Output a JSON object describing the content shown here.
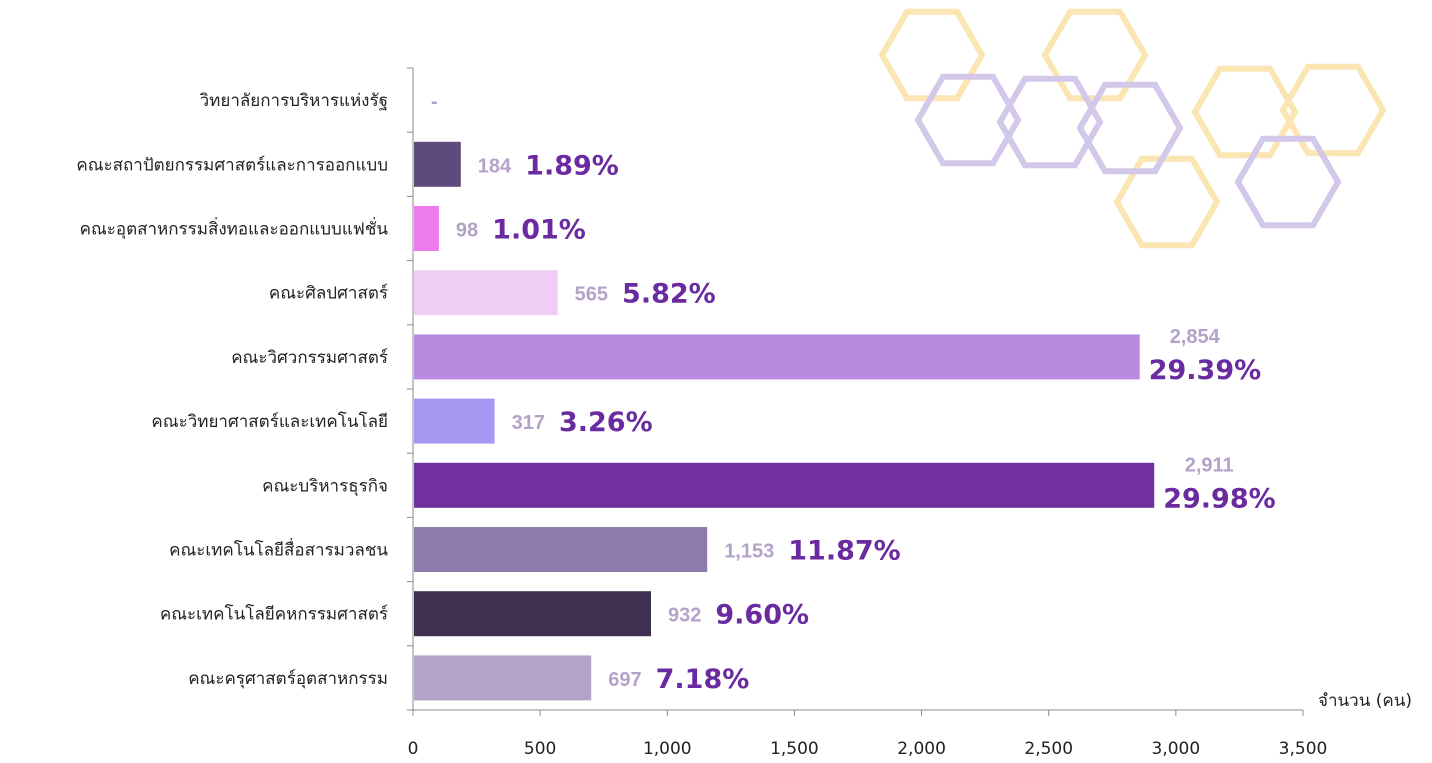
{
  "chart_data": {
    "type": "bar",
    "orientation": "horizontal",
    "categories": [
      "วิทยาลัยการบริหารแห่งรัฐ",
      "คณะสถาปัตยกรรมศาสตร์และการออกแบบ",
      "คณะอุตสาหกรรมสิ่งทอและออกแบบแฟชั่น",
      "คณะศิลปศาสตร์",
      "คณะวิศวกรรมศาสตร์",
      "คณะวิทยาศาสตร์และเทคโนโลยี",
      "คณะบริหารธุรกิจ",
      "คณะเทคโนโลยีสื่อสารมวลชน",
      "คณะเทคโนโลยีคหกรรมศาสตร์",
      "คณะครุศาสตร์อุตสาหกรรม"
    ],
    "values": [
      0,
      184,
      98,
      565,
      2854,
      317,
      2911,
      1153,
      932,
      697
    ],
    "value_labels": [
      "-",
      "184",
      "98",
      "565",
      "2,854",
      "317",
      "2,911",
      "1,153",
      "932",
      "697"
    ],
    "percent_labels": [
      "",
      "1.89%",
      "1.01%",
      "5.82%",
      "29.39%",
      "3.26%",
      "29.98%",
      "11.87%",
      "9.60%",
      "7.18%"
    ],
    "bar_colors": [
      "#b7a6cf",
      "#5e4a7d",
      "#ee7bee",
      "#f0cdf5",
      "#b98be0",
      "#a897f2",
      "#7030a0",
      "#8f7aae",
      "#3f3050",
      "#b3a3c9"
    ],
    "xlim": [
      0,
      3500
    ],
    "x_ticks": [
      0,
      500,
      1000,
      1500,
      2000,
      2500,
      3000,
      3500
    ],
    "x_tick_labels": [
      "0",
      "500",
      "1,000",
      "1,500",
      "2,000",
      "2,500",
      "3,000",
      "3,500"
    ],
    "xlabel": "จำนวน (คน)",
    "grid": false,
    "title": ""
  },
  "decoration": {
    "hex_color_gold": "#fbe6b3",
    "hex_color_lavender": "#d4c8ea"
  }
}
